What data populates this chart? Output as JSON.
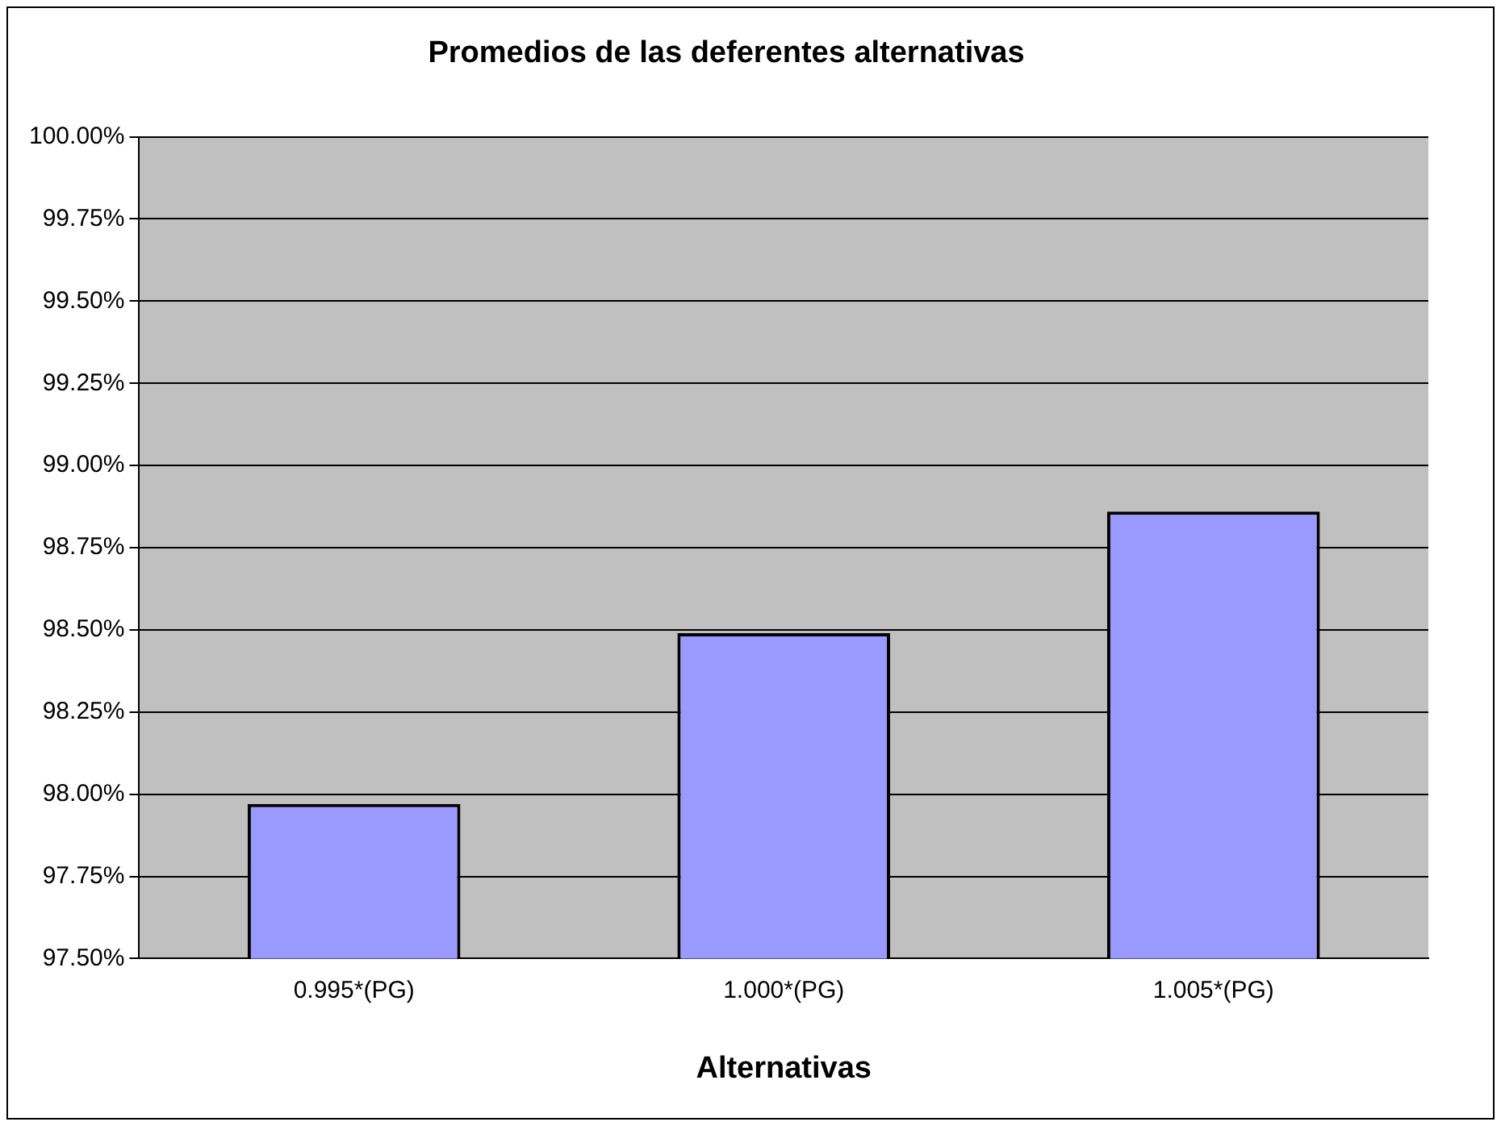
{
  "chart_data": {
    "type": "bar",
    "title": "Promedios de las deferentes alternativas",
    "xlabel": "Alternativas",
    "categories": [
      "0.995*(PG)",
      "1.000*(PG)",
      "1.005*(PG)"
    ],
    "values": [
      97.97,
      98.49,
      98.86
    ],
    "color": "#9999ff",
    "ylim": [
      97.5,
      100
    ],
    "yticks": [
      {
        "value": 97.5,
        "label": "97.50%"
      },
      {
        "value": 97.75,
        "label": "97.75%"
      },
      {
        "value": 98,
        "label": "98.00%"
      },
      {
        "value": 98.25,
        "label": "98.25%"
      },
      {
        "value": 98.5,
        "label": "98.50%"
      },
      {
        "value": 98.75,
        "label": "98.75%"
      },
      {
        "value": 99,
        "label": "99.00%"
      },
      {
        "value": 99.25,
        "label": "99.25%"
      },
      {
        "value": 99.5,
        "label": "99.50%"
      },
      {
        "value": 99.75,
        "label": "99.75%"
      },
      {
        "value": 100,
        "label": "100.00%"
      }
    ],
    "grid": "y",
    "legend": false
  }
}
